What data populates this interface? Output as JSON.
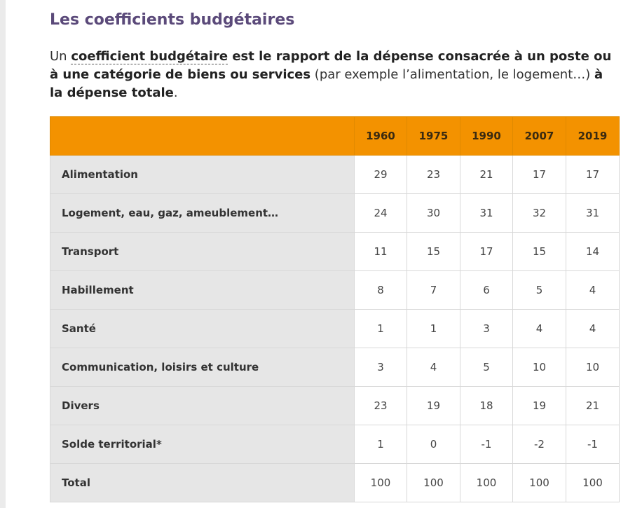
{
  "title": "Les coefficients budgétaires",
  "intro": {
    "lead": " Un ",
    "term": "coefficient budgétaire",
    "bold1": " est le rapport de la dépense consacrée à un poste ou à une catégorie de biens ou services",
    "normal": " (par exemple l’alimentation, le logement…) ",
    "bold2": "à la dépense totale",
    "end": "."
  },
  "table": {
    "years": [
      "1960",
      "1975",
      "1990",
      "2007",
      "2019"
    ],
    "rows": [
      {
        "label": "Alimentation",
        "values": [
          "29",
          "23",
          "21",
          "17",
          "17"
        ]
      },
      {
        "label": "Logement, eau, gaz, ameublement…",
        "values": [
          "24",
          "30",
          "31",
          "32",
          "31"
        ]
      },
      {
        "label": "Transport",
        "values": [
          "11",
          "15",
          "17",
          "15",
          "14"
        ]
      },
      {
        "label": "Habillement",
        "values": [
          "8",
          "7",
          "6",
          "5",
          "4"
        ]
      },
      {
        "label": "Santé",
        "values": [
          "1",
          "1",
          "3",
          "4",
          "4"
        ]
      },
      {
        "label": "Communication, loisirs et culture",
        "values": [
          "3",
          "4",
          "5",
          "10",
          "10"
        ]
      },
      {
        "label": "Divers",
        "values": [
          "23",
          "19",
          "18",
          "19",
          "21"
        ]
      },
      {
        "label": "Solde territorial*",
        "values": [
          "1",
          "0",
          "-1",
          "-2",
          "-1"
        ]
      },
      {
        "label": "Total",
        "values": [
          "100",
          "100",
          "100",
          "100",
          "100"
        ]
      }
    ]
  },
  "colors": {
    "title": "#5b4a7a",
    "header_bg": "#f39200",
    "label_bg": "#e6e6e6"
  }
}
